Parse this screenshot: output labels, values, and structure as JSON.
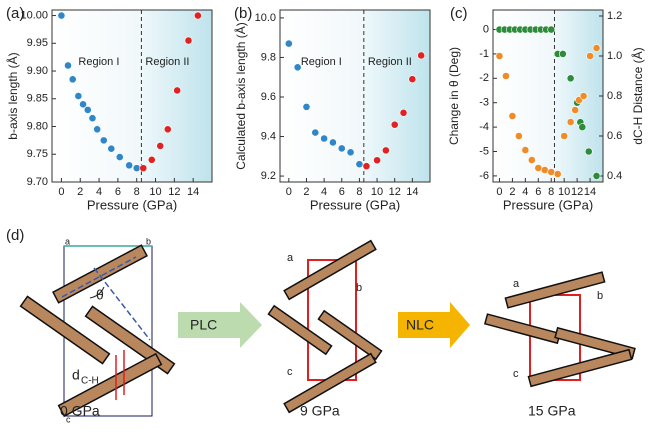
{
  "chart_data": [
    {
      "type": "scatter",
      "panel_label": "(a)",
      "xlabel": "Pressure (GPa)",
      "ylabel": "b-axis length (Å)",
      "xlim": [
        -1,
        16
      ],
      "xticks": [
        0,
        2,
        4,
        6,
        8,
        10,
        12,
        14
      ],
      "ylim": [
        9.7,
        10.01
      ],
      "yticks": [
        {
          "value": 9.7,
          "label": "9.70"
        },
        9.75,
        {
          "value": 9.8,
          "label": "9.80"
        },
        9.85,
        {
          "value": 9.9,
          "label": "9.90"
        },
        9.95,
        {
          "value": 10.0,
          "label": "10.00"
        }
      ],
      "divider_x": 8.5,
      "annotations": [
        "Region I",
        "Region II"
      ],
      "series": [
        {
          "color": "#2f86c8",
          "x": [
            0,
            0.7,
            1.2,
            1.8,
            2.3,
            2.8,
            3.3,
            3.8,
            4.5,
            5.3,
            6.2,
            7.2,
            8.0
          ],
          "values": [
            10.0,
            9.91,
            9.885,
            9.855,
            9.84,
            9.83,
            9.815,
            9.795,
            9.775,
            9.76,
            9.745,
            9.73,
            9.725
          ]
        },
        {
          "color": "#e02222",
          "x": [
            8.7,
            9.6,
            10.5,
            11.3,
            12.3,
            13.5,
            14.5
          ],
          "values": [
            9.725,
            9.74,
            9.765,
            9.795,
            9.865,
            9.955,
            10.0
          ]
        }
      ]
    },
    {
      "type": "scatter",
      "panel_label": "(b)",
      "xlabel": "Pressure (GPa)",
      "ylabel": "Calculated b-axis length (Å)",
      "xlim": [
        -1,
        16
      ],
      "xticks": [
        0,
        2,
        4,
        6,
        8,
        10,
        12,
        14
      ],
      "ylim": [
        9.17,
        10.04
      ],
      "yticks": [
        9.2,
        9.4,
        9.6,
        9.8,
        {
          "value": 10.0,
          "label": "10.0"
        }
      ],
      "divider_x": 8.5,
      "annotations": [
        "Region I",
        "Region II"
      ],
      "series": [
        {
          "color": "#2f86c8",
          "x": [
            0,
            1,
            2,
            3,
            4,
            5,
            6,
            7,
            8
          ],
          "values": [
            9.87,
            9.75,
            9.55,
            9.42,
            9.39,
            9.37,
            9.34,
            9.32,
            9.26
          ]
        },
        {
          "color": "#e02222",
          "x": [
            8.8,
            10,
            11,
            12,
            13,
            14,
            15
          ],
          "values": [
            9.25,
            9.28,
            9.33,
            9.46,
            9.52,
            9.69,
            9.81
          ]
        }
      ]
    },
    {
      "type": "scatter",
      "panel_label": "(c)",
      "xlabel": "Pressure (GPa)",
      "ylabel": "Change in θ (Deg)",
      "y2label": "dC-H Distance (Å)",
      "xlim": [
        -1,
        16
      ],
      "xticks": [
        0,
        2,
        4,
        6,
        8,
        10,
        12,
        14
      ],
      "ylim": [
        -6.25,
        0.8
      ],
      "yticks": [
        -6,
        -5,
        -4,
        -3,
        -2,
        -1,
        0
      ],
      "y2lim": [
        0.37,
        1.23
      ],
      "y2ticks": [
        0.4,
        0.6,
        0.8,
        {
          "value": 1.0,
          "label": "1.0"
        },
        1.2
      ],
      "divider_x": 8.5,
      "series": [
        {
          "color": "#2e8b3a",
          "x": [
            0,
            0.8,
            1.6,
            2.4,
            3.2,
            4,
            4.8,
            5.6,
            6.4,
            7.2,
            8
          ],
          "values": [
            0,
            0,
            0,
            0,
            0,
            0,
            0,
            0,
            0,
            0,
            0
          ]
        },
        {
          "color": "#2e8b3a",
          "x": [
            9,
            9.8,
            11,
            12,
            12.5,
            12.8,
            13.8,
            15
          ],
          "values": [
            -1,
            -1,
            -2,
            -3,
            -3.8,
            -4,
            -5,
            -6
          ]
        },
        {
          "color": "#f08c28",
          "axis": "y2",
          "x": [
            0,
            1,
            2,
            3,
            4,
            5,
            6,
            7,
            8,
            9
          ],
          "values": [
            1.0,
            0.9,
            0.7,
            0.6,
            0.53,
            0.48,
            0.44,
            0.43,
            0.42,
            0.41
          ]
        },
        {
          "color": "#f08c28",
          "axis": "y2",
          "x": [
            10,
            11,
            11.7,
            12.3,
            13,
            14,
            15
          ],
          "values": [
            0.6,
            0.67,
            0.73,
            0.78,
            0.8,
            1.0,
            1.04
          ]
        }
      ]
    }
  ],
  "diagram": {
    "panel_label": "(d)",
    "corner_labels": [
      "a",
      "b",
      "c"
    ],
    "angle_label": "θ",
    "distance_label": "d",
    "distance_sub": "C-H",
    "steps": [
      "0 GPa",
      "9 GPa",
      "15 GPa"
    ],
    "arrows": [
      "PLC",
      "NLC"
    ],
    "corner_labels_9": [
      "a",
      "b",
      "c"
    ],
    "corner_labels_15": [
      "a",
      "b",
      "c"
    ]
  }
}
